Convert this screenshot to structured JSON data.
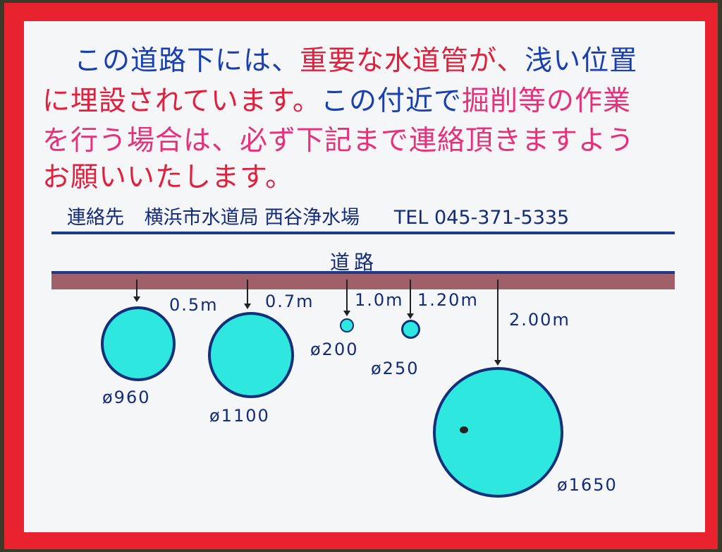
{
  "notice": {
    "line1": [
      {
        "t": "この道路下には、",
        "c": "b"
      },
      {
        "t": "重要な水道管が、",
        "c": "r"
      },
      {
        "t": "浅い位置",
        "c": "b"
      }
    ],
    "line2": [
      {
        "t": "に埋設されています。",
        "c": "r"
      },
      {
        "t": "この付近で",
        "c": "b"
      },
      {
        "t": "掘削等の作業",
        "c": "p"
      }
    ],
    "line3": [
      {
        "t": "を行う場合は、必ず下記まで連絡頂きますよう",
        "c": "p"
      }
    ],
    "line4": [
      {
        "t": "お願いいたします。",
        "c": "r"
      }
    ]
  },
  "contact": {
    "label": "連絡先",
    "org": "横浜市水道局 西谷浄水場",
    "tel": "TEL 045-371-5335"
  },
  "diagram": {
    "road_label": "道路",
    "pipes": [
      {
        "diameter": "ø960",
        "depth": "0.5m"
      },
      {
        "diameter": "ø1100",
        "depth": "0.7m"
      },
      {
        "diameter": "ø200",
        "depth": "1.0m"
      },
      {
        "diameter": "ø250",
        "depth": "1.20m"
      },
      {
        "diameter": "ø1650",
        "depth": "2.00m"
      }
    ]
  },
  "colors": {
    "border": "#e8232f",
    "pipe": "#2ee8e0",
    "text_blue": "#1a3fb0",
    "text_red": "#e0203c"
  }
}
